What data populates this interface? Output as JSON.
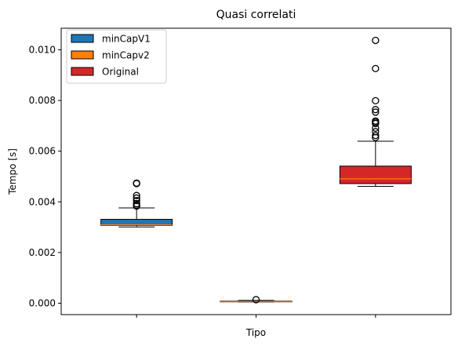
{
  "chart_data": {
    "type": "box",
    "title": "Quasi correlati",
    "xlabel": "Tipo",
    "ylabel": "Tempo [s]",
    "ylim": [
      -0.00045,
      0.01085
    ],
    "yticks": [
      0.0,
      0.002,
      0.004,
      0.006,
      0.008,
      0.01
    ],
    "ytick_labels": [
      "0.000",
      "0.002",
      "0.004",
      "0.006",
      "0.008",
      "0.010"
    ],
    "legend_position": "top-left",
    "grid": false,
    "series": [
      {
        "name": "minCapV1",
        "color": "#1f77b4",
        "whisker_low": 0.00301,
        "q1": 0.00307,
        "median": 0.00309,
        "q3": 0.00331,
        "whisker_high": 0.00376,
        "outliers": [
          0.00383,
          0.00387,
          0.00393,
          0.00405,
          0.00415,
          0.00425,
          0.00472,
          0.00474
        ]
      },
      {
        "name": "minCapv2",
        "color": "#ff7f0e",
        "whisker_low": 5.5e-05,
        "q1": 6e-05,
        "median": 6.8e-05,
        "q3": 8.5e-05,
        "whisker_high": 0.00011,
        "outliers": [
          0.00014
        ]
      },
      {
        "name": "Original",
        "color": "#d62728",
        "whisker_low": 0.00461,
        "q1": 0.00472,
        "median": 0.00491,
        "q3": 0.00541,
        "whisker_high": 0.00639,
        "outliers": [
          0.00654,
          0.00662,
          0.00677,
          0.00691,
          0.00709,
          0.00714,
          0.00719,
          0.00754,
          0.00764,
          0.00799,
          0.00926,
          0.01037
        ]
      }
    ]
  }
}
